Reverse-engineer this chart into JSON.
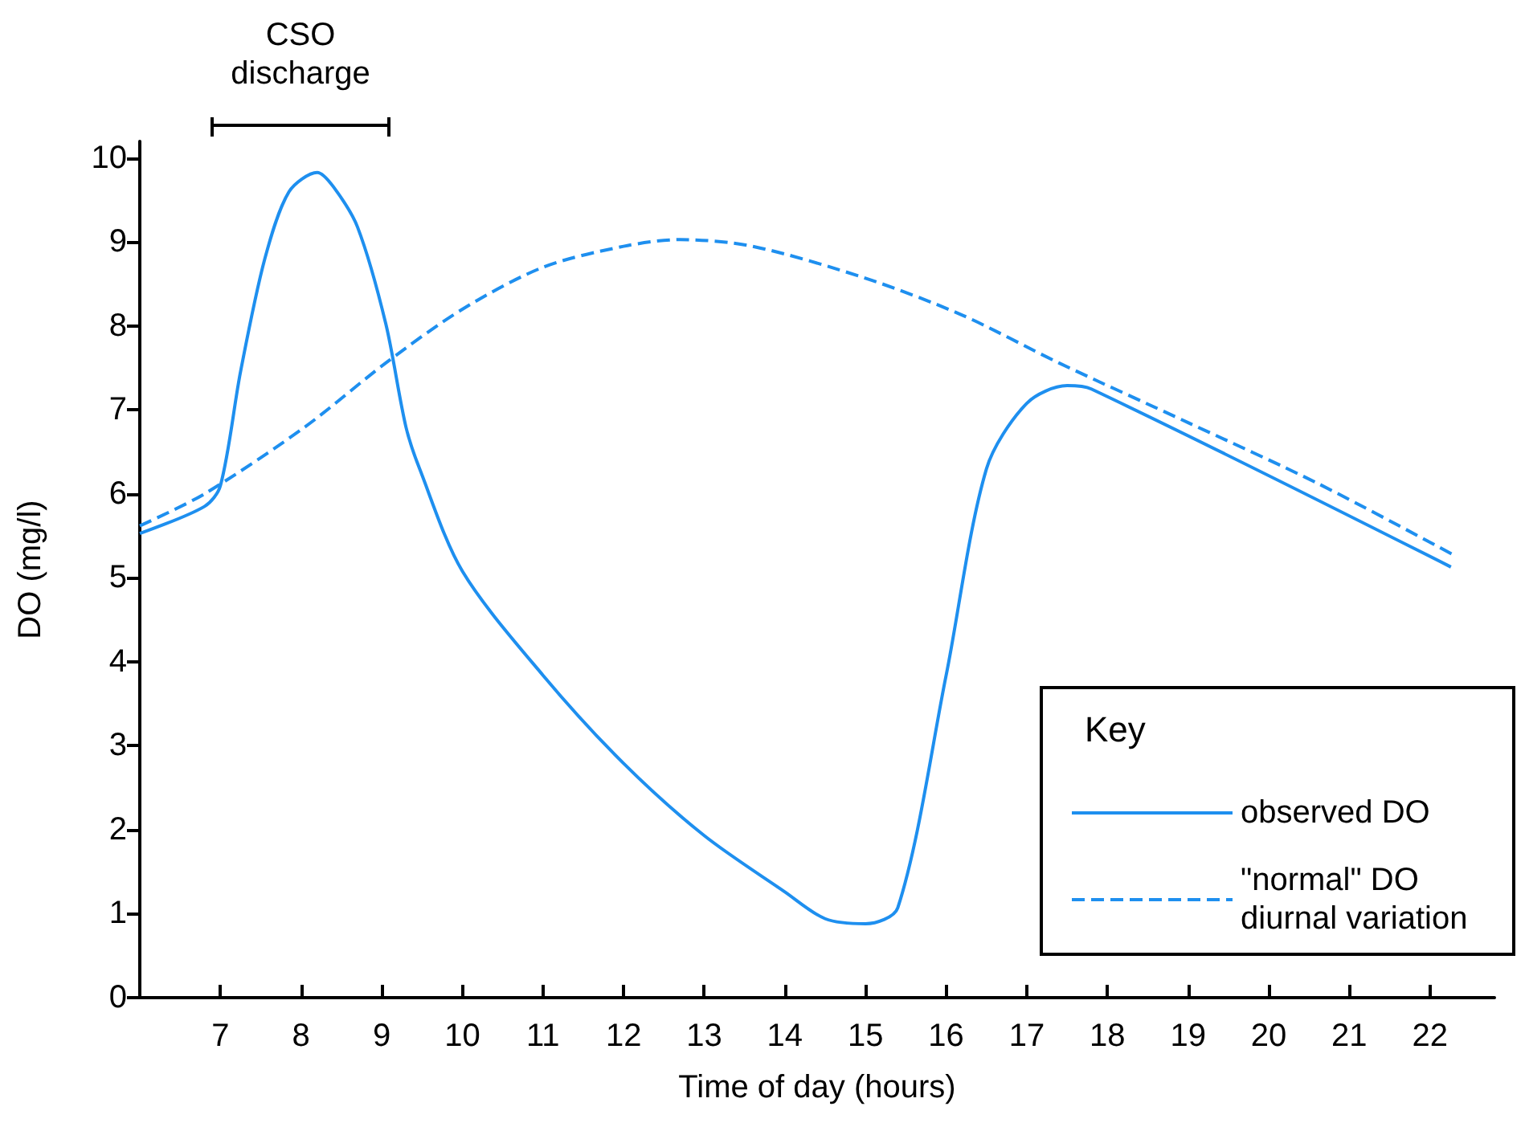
{
  "chart_data": {
    "type": "line",
    "xlabel": "Time of day (hours)",
    "ylabel": "DO (mg/l)",
    "legend_title": "Key",
    "legend": "bottom right",
    "grid": false,
    "marker": "none",
    "xlim": [
      6,
      22.8
    ],
    "xticks": [
      7,
      8,
      9,
      10,
      11,
      12,
      13,
      14,
      15,
      16,
      17,
      18,
      19,
      20,
      21,
      22
    ],
    "ylim": [
      0,
      10.2
    ],
    "yticks": [
      0,
      1,
      2,
      3,
      4,
      5,
      6,
      7,
      8,
      9,
      10
    ],
    "annotations": [
      "CSO discharge"
    ],
    "series": [
      {
        "name": "observed DO",
        "color": "#1e8fef",
        "line_style": "solid",
        "x": [
          6,
          6.8,
          7,
          7.25,
          7.55,
          7.85,
          8.2,
          8.4,
          8.7,
          9.05,
          9.3,
          9.47,
          10,
          11,
          12,
          13,
          14,
          14.5,
          15,
          15.4,
          16,
          16.5,
          17,
          17.5,
          17.8,
          22.26
        ],
        "values": [
          5.53,
          5.85,
          6.1,
          7.46,
          8.8,
          9.6,
          9.83,
          9.66,
          9.18,
          8.03,
          6.8,
          6.3,
          5.08,
          3.84,
          2.79,
          1.93,
          1.26,
          0.94,
          0.88,
          1.07,
          3.84,
          6.3,
          7.08,
          7.29,
          7.25,
          5.13
        ]
      },
      {
        "name": "\"normal\" DO diurnal variation",
        "color": "#1e8fef",
        "line_style": "dashed",
        "x": [
          6,
          6.8,
          8.05,
          9.05,
          10,
          11,
          12,
          12.7,
          13.6,
          15,
          16.2,
          17.4,
          19,
          20.6,
          22.3
        ],
        "values": [
          5.62,
          6.0,
          6.8,
          7.56,
          8.2,
          8.7,
          8.95,
          9.03,
          8.95,
          8.57,
          8.13,
          7.56,
          6.85,
          6.13,
          5.27
        ]
      }
    ]
  }
}
